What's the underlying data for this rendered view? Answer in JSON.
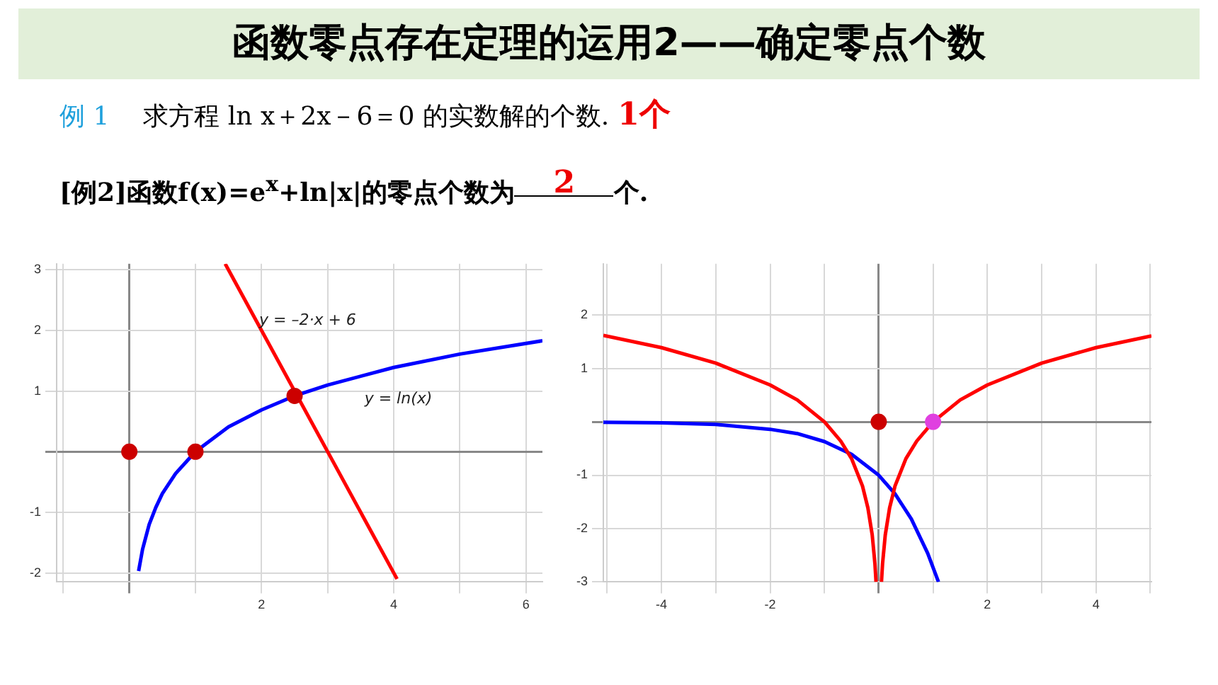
{
  "chart_data": [
    {
      "type": "line",
      "title": "函数零点存在定理的运用2——确定零点个数",
      "annotations": [
        "例 1",
        "求方程 ln x＋2x－6＝0 的实数解的个数.",
        "1个",
        "[例2]函数f(x)=e$^{x}$+ln|x|的零点个数为",
        "2",
        "个."
      ],
      "xlim": [
        -1.1,
        6.25
      ],
      "ylim": [
        -2.15,
        3.1
      ],
      "xticks": [
        {
          "value": -1,
          "label": null
        },
        {
          "value": 0,
          "label": null
        },
        {
          "value": 1,
          "label": null
        },
        2,
        {
          "value": 3,
          "label": null
        },
        4,
        {
          "value": 5,
          "label": null
        },
        6
      ],
      "yticks": [
        -2,
        -1,
        {
          "value": 0,
          "label": null
        },
        1,
        2,
        3
      ],
      "grid": true,
      "legend": false,
      "marker": "none",
      "series": [
        {
          "type": "line",
          "name": "y = ln(x)",
          "color": "#0000ff",
          "x": [
            0.14,
            0.2,
            0.3,
            0.4,
            0.5,
            0.7,
            1,
            1.5,
            2,
            2.5,
            3,
            4,
            5,
            6.25
          ],
          "values": [
            -1.97,
            -1.61,
            -1.2,
            -0.92,
            -0.69,
            -0.36,
            0,
            0.41,
            0.69,
            0.92,
            1.1,
            1.39,
            1.61,
            1.83
          ]
        },
        {
          "type": "line",
          "name": "y = –2·x + 6",
          "color": "#ff0000",
          "x": [
            1.45,
            4.05
          ],
          "values": [
            3.1,
            -2.1
          ]
        },
        {
          "type": "scatter",
          "marker": "circle",
          "color": "#cc0000",
          "x": [
            0,
            1,
            2.5
          ],
          "values": [
            0,
            0,
            0.92
          ]
        }
      ]
    },
    {
      "type": "line",
      "xlim": [
        -5.07,
        5.02
      ],
      "ylim": [
        -3.0,
        2.96
      ],
      "xticks": [
        {
          "value": -5,
          "label": null
        },
        -4,
        {
          "value": -3,
          "label": null
        },
        -2,
        {
          "value": -1,
          "label": null
        },
        {
          "value": 0,
          "label": null
        },
        {
          "value": 1,
          "label": null
        },
        2,
        {
          "value": 3,
          "label": null
        },
        4,
        {
          "value": 5,
          "label": null
        }
      ],
      "yticks": [
        -3,
        -2,
        -1,
        {
          "value": 0,
          "label": null
        },
        1,
        2
      ],
      "grid": true,
      "legend": false,
      "marker": "none",
      "series": [
        {
          "type": "line",
          "color": "#ff0000",
          "x": [
            -5.07,
            -4,
            -3,
            -2,
            -1.5,
            -1,
            -0.7,
            -0.5,
            -0.3,
            -0.2,
            -0.12,
            -0.07,
            -0.05,
            0,
            0.05,
            0.07,
            0.12,
            0.2,
            0.3,
            0.5,
            0.7,
            1,
            1.5,
            2,
            3,
            4,
            5.02
          ],
          "values": [
            1.62,
            1.39,
            1.1,
            0.69,
            0.41,
            0,
            -0.36,
            -0.69,
            -1.2,
            -1.61,
            -2.12,
            -2.66,
            -3.0,
            null,
            -3.0,
            -2.66,
            -2.12,
            -1.61,
            -1.2,
            -0.69,
            -0.36,
            0,
            0.41,
            0.69,
            1.1,
            1.39,
            1.61
          ]
        },
        {
          "type": "line",
          "color": "#0000ff",
          "x": [
            -5.07,
            -4,
            -3,
            -2,
            -1.5,
            -1,
            -0.5,
            0,
            0.3,
            0.6,
            0.9,
            1.1
          ],
          "values": [
            -0.01,
            -0.02,
            -0.05,
            -0.14,
            -0.22,
            -0.37,
            -0.61,
            -1,
            -1.35,
            -1.82,
            -2.46,
            -3.0
          ]
        },
        {
          "type": "scatter",
          "marker": "circle",
          "color": "#cc0000",
          "x": [
            0
          ],
          "values": [
            0
          ]
        },
        {
          "type": "scatter",
          "marker": "circle",
          "color": "#e040e0",
          "x": [
            1
          ],
          "values": [
            0
          ]
        }
      ]
    }
  ]
}
